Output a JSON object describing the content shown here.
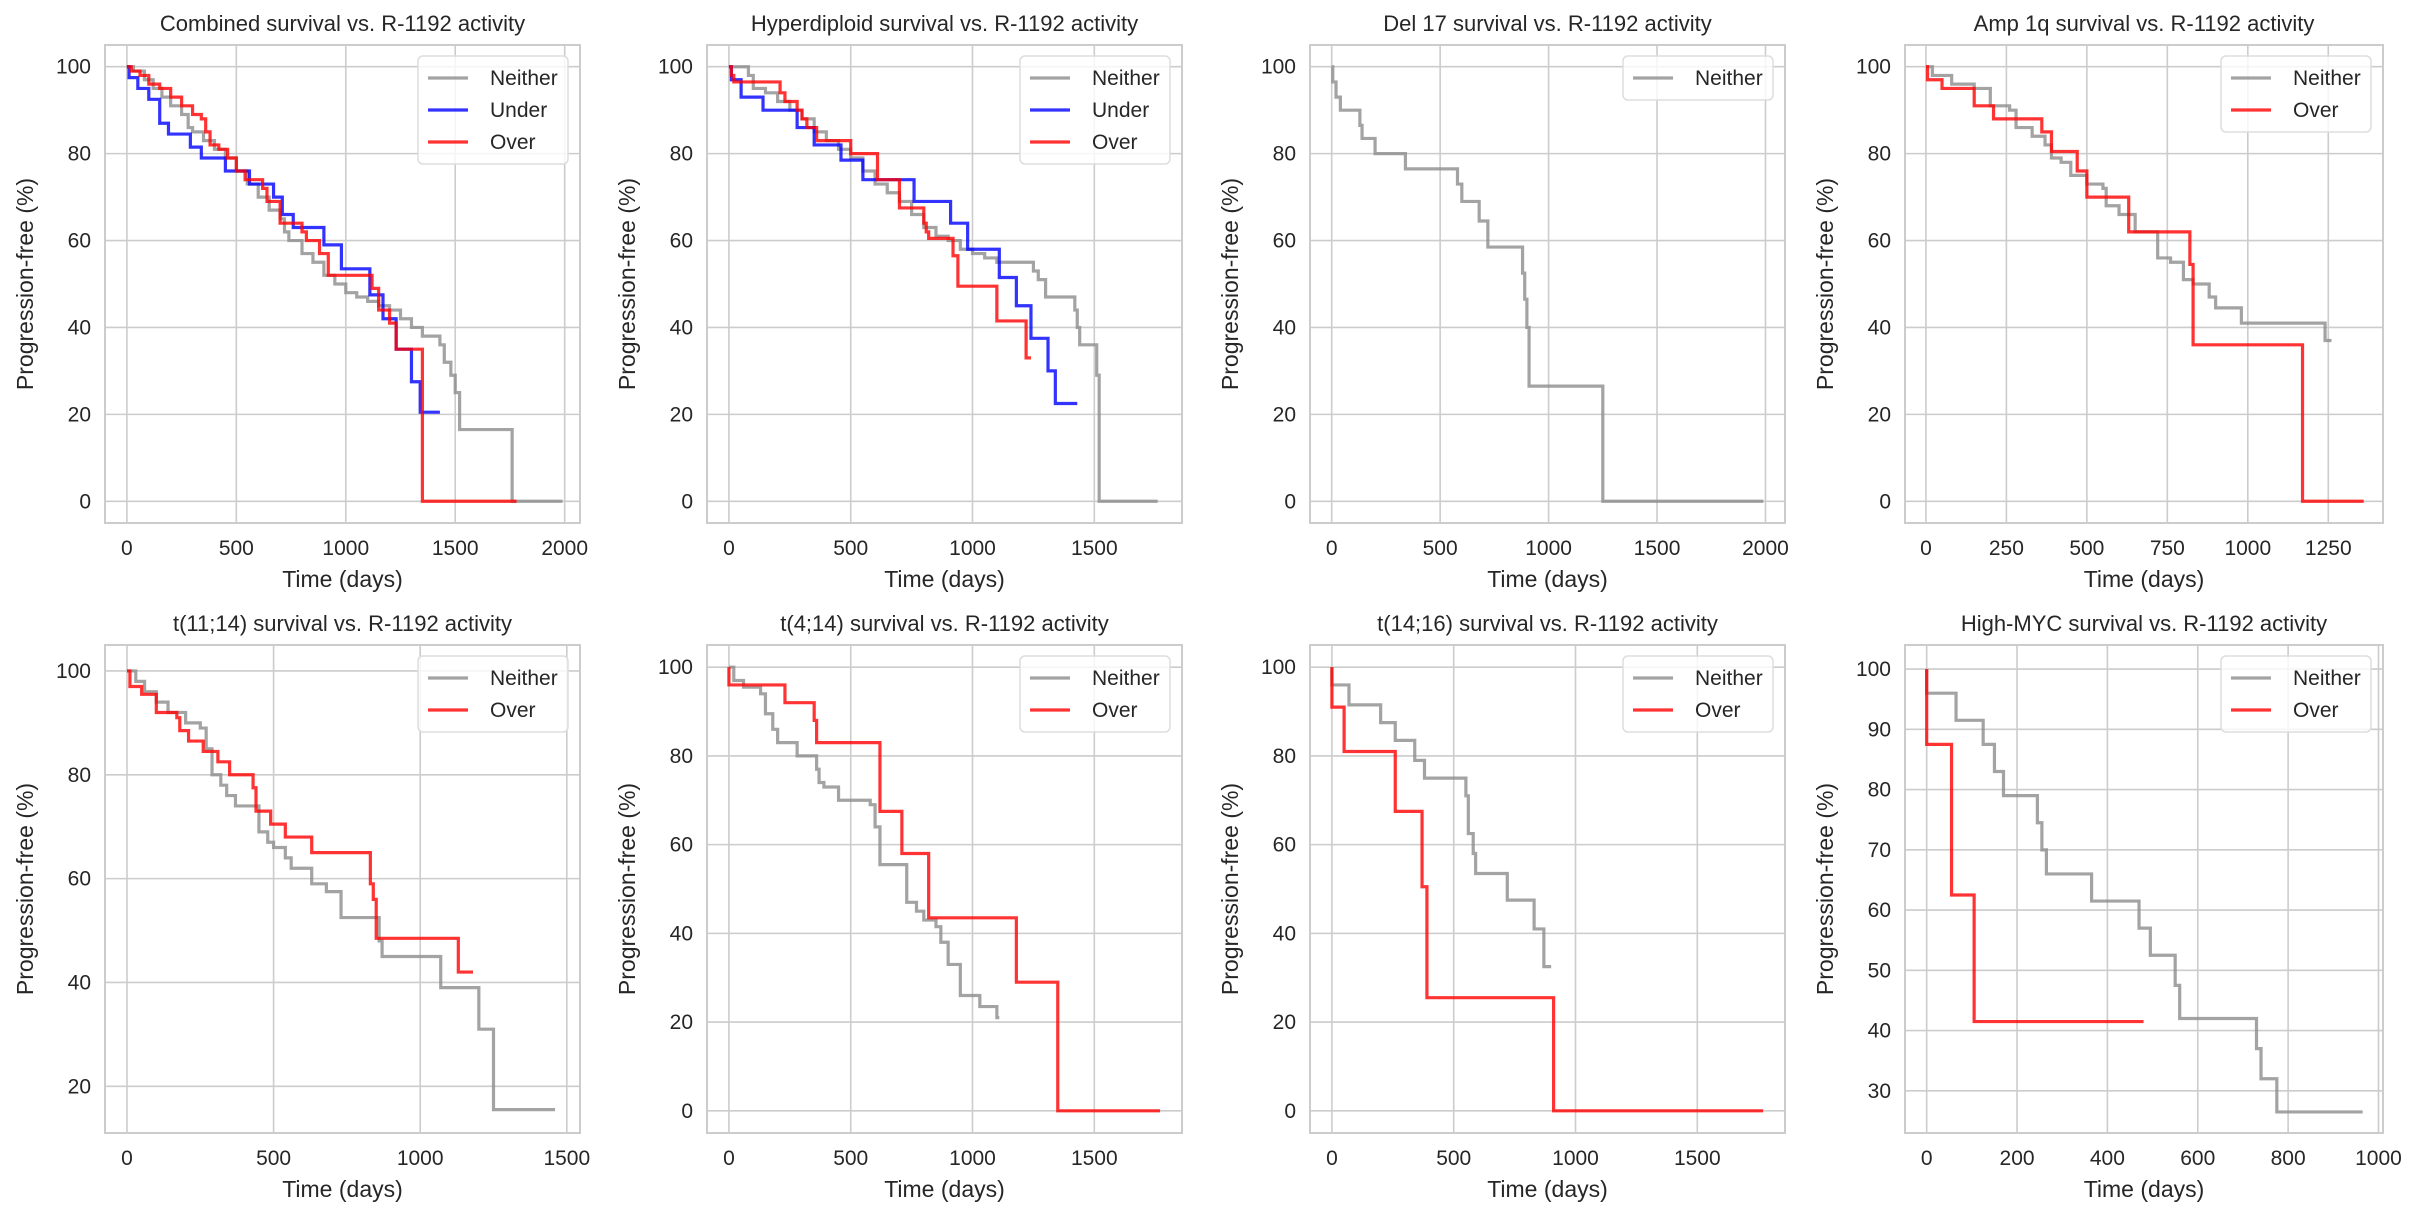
{
  "figure": {
    "colors": {
      "Neither": "#8c8c8c",
      "Under": "#0000ff",
      "Over": "#ff0000",
      "grid": "#cccccc",
      "frame": "#cccccc"
    }
  },
  "chart_data": [
    {
      "type": "line",
      "step": true,
      "title": "Combined survival vs. R-1192 activity",
      "xlabel": "Time (days)",
      "ylabel": "Progression-free (%)",
      "xlim": [
        -100,
        2070
      ],
      "ylim": [
        -5,
        105
      ],
      "xticks": [
        0,
        500,
        1000,
        1500,
        2000
      ],
      "yticks": [
        0,
        20,
        40,
        60,
        80,
        100
      ],
      "grid": true,
      "legend": "top-right",
      "series": [
        {
          "name": "Neither",
          "x": [
            0,
            30,
            80,
            120,
            160,
            200,
            250,
            280,
            300,
            350,
            400,
            450,
            500,
            550,
            600,
            650,
            700,
            720,
            740,
            800,
            850,
            900,
            950,
            1000,
            1050,
            1100,
            1150,
            1200,
            1250,
            1300,
            1350,
            1400,
            1430,
            1450,
            1480,
            1500,
            1520,
            1760,
            1760,
            1990
          ],
          "y": [
            100,
            99,
            97,
            95,
            93,
            91,
            89,
            86,
            85,
            83,
            81,
            79,
            76,
            73,
            70,
            67,
            65,
            62,
            60,
            57,
            55,
            52,
            50,
            48,
            47,
            46,
            45,
            44,
            42,
            40,
            38,
            38,
            36,
            32,
            29,
            25,
            16.5,
            16.5,
            0,
            0
          ]
        },
        {
          "name": "Under",
          "x": [
            0,
            10,
            50,
            100,
            150,
            190,
            290,
            340,
            450,
            560,
            670,
            710,
            760,
            900,
            980,
            1110,
            1170,
            1230,
            1300,
            1340,
            1430
          ],
          "y": [
            100,
            97.5,
            95,
            92.5,
            87,
            84.5,
            81.5,
            79,
            76,
            73,
            70,
            66,
            63,
            59,
            53.5,
            47.5,
            42,
            35,
            27.5,
            20.5,
            20.5
          ]
        },
        {
          "name": "Over",
          "x": [
            0,
            20,
            60,
            100,
            150,
            200,
            250,
            300,
            340,
            360,
            380,
            420,
            460,
            500,
            540,
            620,
            640,
            700,
            800,
            820,
            880,
            920,
            1100,
            1120,
            1150,
            1200,
            1230,
            1350,
            1350,
            1780
          ],
          "y": [
            100,
            99,
            98,
            96,
            95,
            93,
            91,
            89,
            88,
            85,
            82,
            81,
            79,
            76,
            74,
            72,
            69,
            64,
            62,
            60,
            57,
            52,
            52,
            49,
            44,
            41,
            35,
            35,
            0,
            0
          ]
        }
      ]
    },
    {
      "type": "line",
      "step": true,
      "title": "Hyperdiploid survival vs. R-1192 activity",
      "xlabel": "Time (days)",
      "ylabel": "Progression-free (%)",
      "xlim": [
        -90,
        1860
      ],
      "ylim": [
        -5,
        105
      ],
      "xticks": [
        0,
        500,
        1000,
        1500
      ],
      "yticks": [
        0,
        20,
        40,
        60,
        80,
        100
      ],
      "grid": true,
      "legend": "top-right",
      "series": [
        {
          "name": "Neither",
          "x": [
            0,
            80,
            100,
            150,
            200,
            250,
            300,
            350,
            400,
            450,
            500,
            550,
            600,
            650,
            700,
            750,
            800,
            850,
            900,
            950,
            1000,
            1050,
            1100,
            1200,
            1250,
            1270,
            1300,
            1400,
            1420,
            1430,
            1440,
            1500,
            1510,
            1520,
            1760
          ],
          "y": [
            100,
            98,
            95,
            94,
            92,
            90,
            88,
            85,
            83,
            81,
            79,
            76,
            73,
            71,
            69,
            66,
            63,
            61,
            60,
            58,
            57,
            56,
            55,
            55,
            53,
            51,
            47,
            47,
            44,
            40,
            36,
            36,
            29,
            0,
            0
          ]
        },
        {
          "name": "Under",
          "x": [
            0,
            10,
            50,
            140,
            280,
            350,
            460,
            550,
            760,
            910,
            980,
            1110,
            1180,
            1240,
            1310,
            1340,
            1430
          ],
          "y": [
            100,
            97,
            93,
            90,
            86,
            82,
            78.5,
            74,
            69,
            64,
            58,
            51.5,
            45,
            37.5,
            30,
            22.5,
            22.5
          ]
        },
        {
          "name": "Over",
          "x": [
            0,
            10,
            20,
            210,
            230,
            280,
            300,
            320,
            360,
            400,
            500,
            610,
            700,
            800,
            810,
            820,
            920,
            930,
            940,
            1100,
            1220,
            1240
          ],
          "y": [
            100,
            98,
            96.5,
            94,
            92,
            90,
            88,
            86,
            83,
            83,
            80,
            74,
            67.5,
            64,
            62,
            60.5,
            56.5,
            56.5,
            49.5,
            41.5,
            33,
            33
          ]
        }
      ]
    },
    {
      "type": "line",
      "step": true,
      "title": "Del 17 survival vs. R-1192 activity",
      "xlabel": "Time (days)",
      "ylabel": "Progression-free (%)",
      "xlim": [
        -100,
        2090
      ],
      "ylim": [
        -5,
        105
      ],
      "xticks": [
        0,
        500,
        1000,
        1500,
        2000
      ],
      "yticks": [
        0,
        20,
        40,
        60,
        80,
        100
      ],
      "grid": true,
      "legend": "top-right",
      "series": [
        {
          "name": "Neither",
          "x": [
            0,
            5,
            20,
            40,
            130,
            140,
            200,
            340,
            580,
            600,
            680,
            720,
            880,
            890,
            900,
            910,
            1250,
            1250,
            1990
          ],
          "y": [
            100,
            96.5,
            93,
            90,
            86.5,
            83.5,
            80,
            76.5,
            73,
            69,
            64.5,
            58.5,
            52.5,
            46.5,
            40,
            26.5,
            26.5,
            0,
            0
          ]
        }
      ]
    },
    {
      "type": "line",
      "step": true,
      "title": "Amp 1q survival vs. R-1192 activity",
      "xlabel": "Time (days)",
      "ylabel": "Progression-free (%)",
      "xlim": [
        -65,
        1420
      ],
      "ylim": [
        -5,
        105
      ],
      "xticks": [
        0,
        250,
        500,
        750,
        1000,
        1250
      ],
      "yticks": [
        0,
        20,
        40,
        60,
        80,
        100
      ],
      "grid": true,
      "legend": "top-right",
      "series": [
        {
          "name": "Neither",
          "x": [
            0,
            20,
            80,
            150,
            200,
            260,
            280,
            330,
            370,
            390,
            420,
            450,
            500,
            550,
            560,
            600,
            650,
            700,
            720,
            760,
            800,
            830,
            880,
            900,
            980,
            1240,
            1260
          ],
          "y": [
            100,
            98,
            96,
            95,
            91,
            90,
            86,
            84,
            82,
            79,
            78,
            75,
            73,
            72,
            68,
            66,
            62,
            62,
            56,
            55,
            51,
            50,
            47,
            44.5,
            41,
            37,
            37
          ]
        },
        {
          "name": "Over",
          "x": [
            0,
            5,
            50,
            150,
            210,
            360,
            390,
            470,
            500,
            630,
            820,
            830,
            1170,
            1170,
            1360
          ],
          "y": [
            100,
            97,
            95,
            91,
            88,
            85,
            80.5,
            76,
            70,
            62,
            54.5,
            36,
            36,
            0,
            0
          ]
        }
      ]
    },
    {
      "type": "line",
      "step": true,
      "title": "t(11;14) survival vs. R-1192 activity",
      "xlabel": "Time (days)",
      "ylabel": "Progression-free (%)",
      "xlim": [
        -75,
        1545
      ],
      "ylim": [
        11,
        105
      ],
      "xticks": [
        0,
        500,
        1000,
        1500
      ],
      "yticks": [
        20,
        40,
        60,
        80,
        100
      ],
      "grid": true,
      "legend": "top-right",
      "series": [
        {
          "name": "Neither",
          "x": [
            0,
            30,
            60,
            100,
            140,
            200,
            250,
            270,
            290,
            320,
            340,
            370,
            430,
            450,
            480,
            500,
            540,
            560,
            630,
            680,
            730,
            830,
            860,
            870,
            1070,
            1200,
            1250,
            1460
          ],
          "y": [
            100,
            98,
            96,
            94,
            92,
            90,
            89,
            85,
            80,
            78,
            76,
            74,
            74,
            69,
            67,
            66,
            64,
            62,
            59,
            57.5,
            52.5,
            52.5,
            48,
            45,
            39,
            31,
            15.5,
            15.5
          ]
        },
        {
          "name": "Over",
          "x": [
            0,
            10,
            50,
            100,
            170,
            180,
            210,
            260,
            310,
            350,
            430,
            440,
            490,
            540,
            630,
            830,
            840,
            850,
            1130,
            1180
          ],
          "y": [
            100,
            97,
            95.5,
            92,
            91,
            88.5,
            86.5,
            84.5,
            82.5,
            80,
            77.5,
            73,
            70.5,
            68,
            65,
            59,
            56,
            48.5,
            42,
            42
          ]
        }
      ]
    },
    {
      "type": "line",
      "step": true,
      "title": "t(4;14) survival vs. R-1192 activity",
      "xlabel": "Time (days)",
      "ylabel": "Progression-free (%)",
      "xlim": [
        -90,
        1860
      ],
      "ylim": [
        -5,
        105
      ],
      "xticks": [
        0,
        500,
        1000,
        1500
      ],
      "yticks": [
        0,
        20,
        40,
        60,
        80,
        100
      ],
      "grid": true,
      "legend": "top-right",
      "series": [
        {
          "name": "Neither",
          "x": [
            0,
            20,
            60,
            130,
            150,
            180,
            200,
            280,
            360,
            370,
            390,
            450,
            580,
            600,
            620,
            700,
            730,
            770,
            800,
            850,
            870,
            900,
            950,
            1000,
            1030,
            1100,
            1110
          ],
          "y": [
            100,
            97,
            95.5,
            94,
            89.5,
            86,
            83,
            80,
            77,
            74,
            73,
            70,
            69,
            64,
            55.5,
            55.5,
            47,
            45,
            43,
            41.5,
            38,
            33,
            26,
            26,
            23.5,
            21,
            21
          ]
        },
        {
          "name": "Over",
          "x": [
            0,
            230,
            350,
            360,
            620,
            710,
            820,
            1180,
            1350,
            1350,
            1770
          ],
          "y": [
            96,
            92,
            88,
            83,
            67.5,
            58,
            43.5,
            29,
            29,
            0,
            0
          ]
        }
      ]
    },
    {
      "type": "line",
      "step": true,
      "title": "t(14;16) survival vs. R-1192 activity",
      "xlabel": "Time (days)",
      "ylabel": "Progression-free (%)",
      "xlim": [
        -90,
        1860
      ],
      "ylim": [
        -5,
        105
      ],
      "xticks": [
        0,
        500,
        1000,
        1500
      ],
      "yticks": [
        0,
        20,
        40,
        60,
        80,
        100
      ],
      "grid": true,
      "legend": "top-right",
      "series": [
        {
          "name": "Neither",
          "x": [
            0,
            70,
            200,
            260,
            340,
            380,
            550,
            560,
            580,
            590,
            720,
            830,
            870,
            900
          ],
          "y": [
            96,
            91.5,
            87.5,
            83.5,
            79,
            75,
            71,
            62.5,
            58,
            53.5,
            47.5,
            41,
            32.5,
            32.5
          ]
        },
        {
          "name": "Over",
          "x": [
            0,
            0,
            50,
            260,
            370,
            390,
            910,
            910,
            1770
          ],
          "y": [
            100,
            91,
            81,
            67.5,
            50.5,
            25.5,
            25.5,
            0,
            0
          ]
        }
      ]
    },
    {
      "type": "line",
      "step": true,
      "title": "High-MYC survival vs. R-1192 activity",
      "xlabel": "Time (days)",
      "ylabel": "Progression-free (%)",
      "xlim": [
        -48,
        1010
      ],
      "ylim": [
        23,
        104
      ],
      "xticks": [
        0,
        200,
        400,
        600,
        800,
        1000
      ],
      "yticks": [
        30,
        40,
        50,
        60,
        70,
        80,
        90,
        100
      ],
      "grid": true,
      "legend": "top-right",
      "series": [
        {
          "name": "Neither",
          "x": [
            0,
            65,
            125,
            150,
            170,
            245,
            255,
            265,
            365,
            470,
            495,
            550,
            560,
            730,
            740,
            775,
            965
          ],
          "y": [
            96,
            91.5,
            87.5,
            83,
            79,
            74.5,
            70,
            66,
            61.5,
            57,
            52.5,
            47.5,
            42,
            37,
            32,
            26.5,
            26.5
          ]
        },
        {
          "name": "Over",
          "x": [
            0,
            0,
            55,
            105,
            480
          ],
          "y": [
            100,
            87.5,
            62.5,
            41.5,
            41.5
          ]
        }
      ]
    }
  ]
}
